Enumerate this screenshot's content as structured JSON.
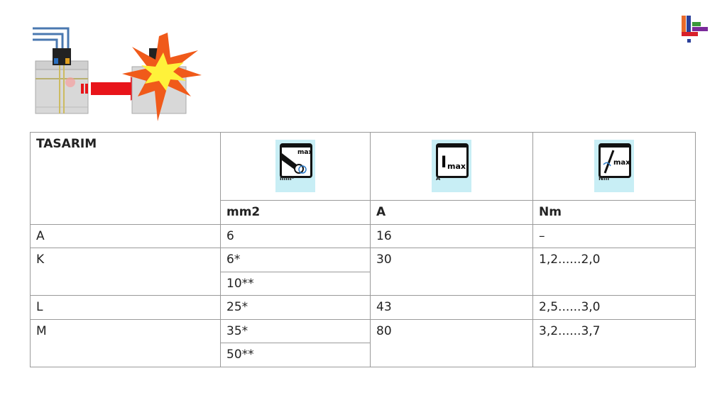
{
  "table": {
    "header_title": "TASARIM",
    "icons": [
      {
        "name": "cable-cross-section-max-icon",
        "caption": "mm²",
        "label": "max"
      },
      {
        "name": "current-max-icon",
        "caption": "A",
        "label": "I",
        "sub": "max"
      },
      {
        "name": "torque-max-icon",
        "caption": "Nm",
        "label": "max"
      }
    ],
    "units": [
      "mm2",
      "A",
      "Nm"
    ],
    "rows": [
      {
        "design": "A",
        "mm2": [
          "6"
        ],
        "a": "16",
        "nm": "–"
      },
      {
        "design": "K",
        "mm2": [
          "6*",
          "10**"
        ],
        "a": "30",
        "nm": "1,2......2,0"
      },
      {
        "design": "L",
        "mm2": [
          "25*"
        ],
        "a": "43",
        "nm": "2,5......3,0"
      },
      {
        "design": "M",
        "mm2": [
          "35*",
          "50**"
        ],
        "a": "80",
        "nm": "3,2......3,7"
      }
    ]
  },
  "colors": {
    "icon_bg": "#c8eef5",
    "border": "#9a9a9a",
    "arrow": "#e8141a"
  }
}
